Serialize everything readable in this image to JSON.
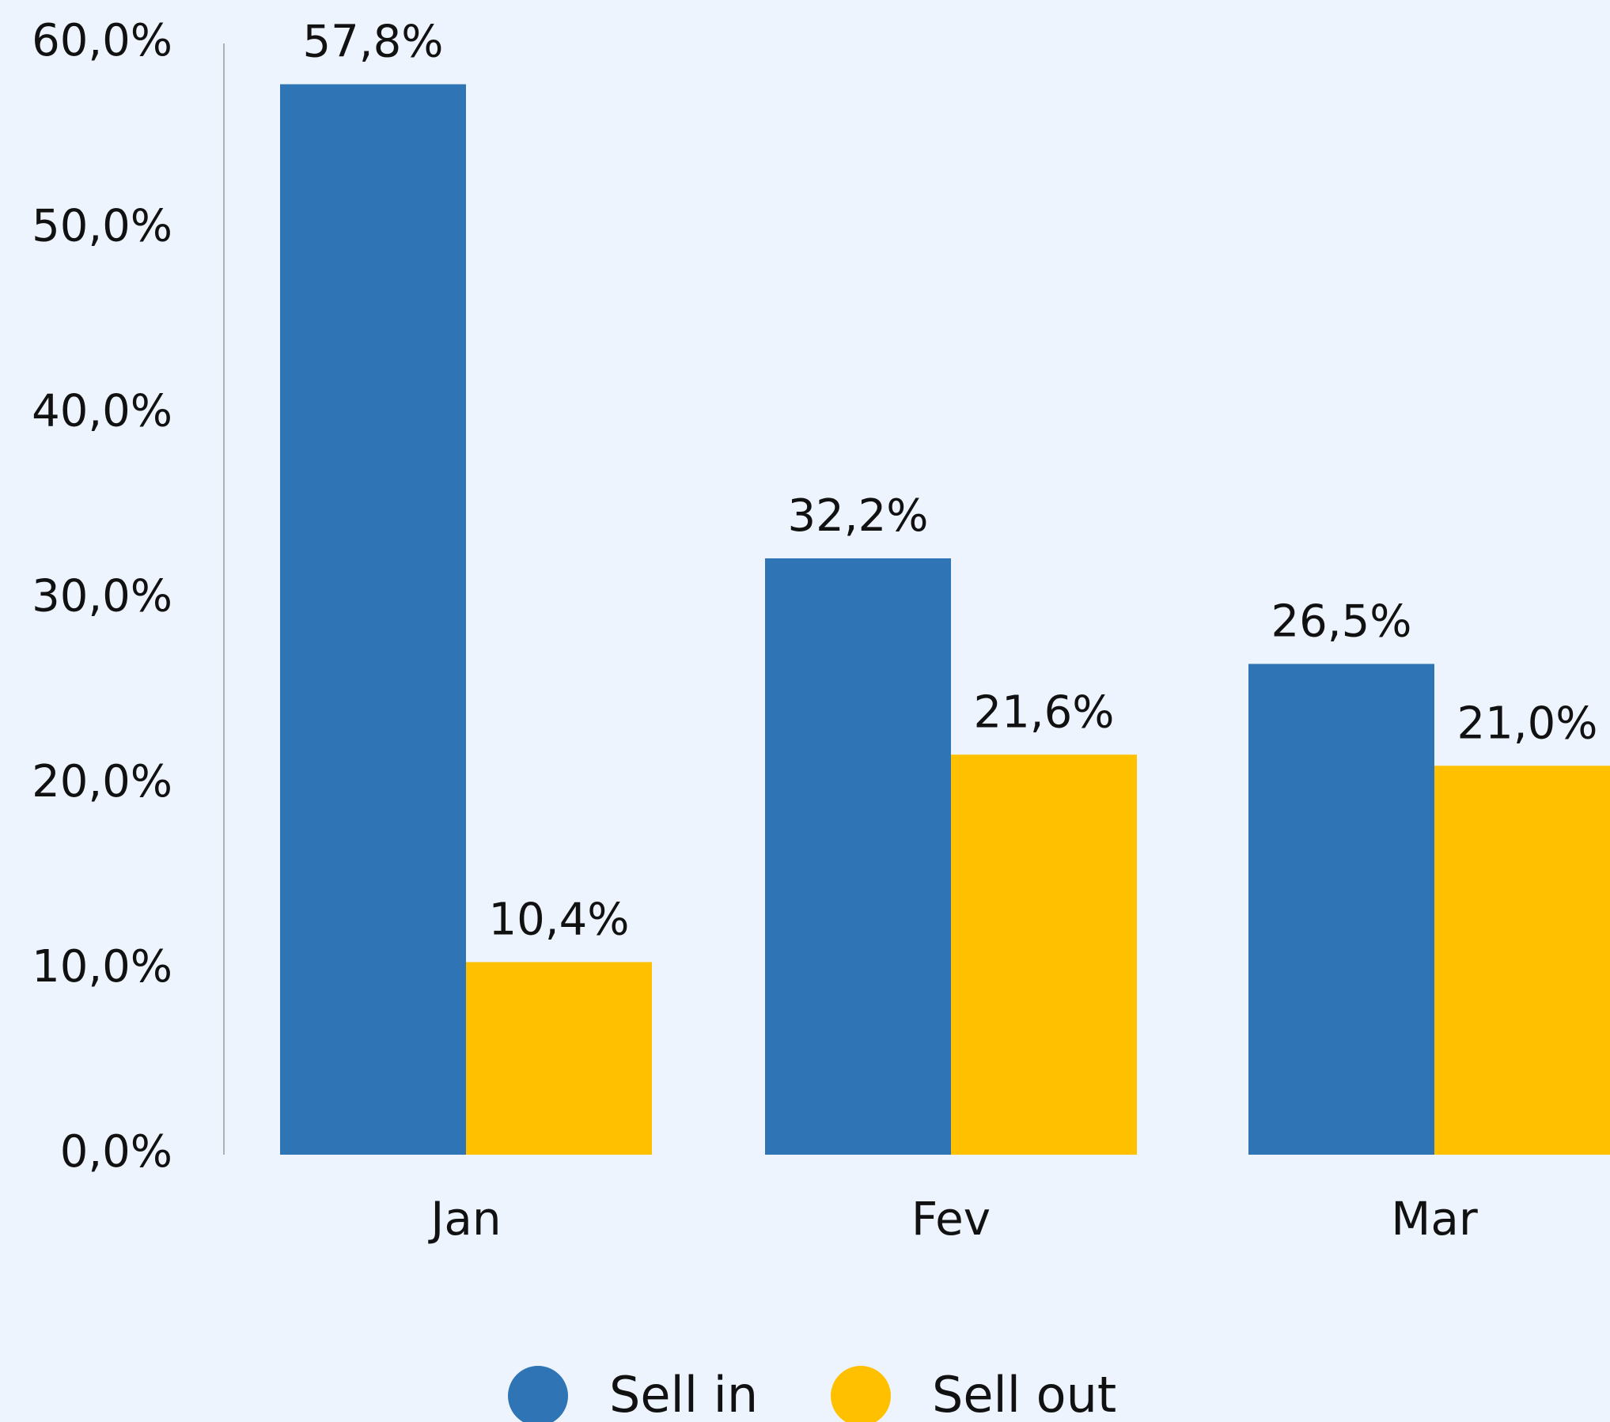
{
  "chart_data": {
    "type": "bar",
    "categories": [
      "Jan",
      "Fev",
      "Mar"
    ],
    "series": [
      {
        "name": "Sell in",
        "color": "#2f75b5",
        "values": [
          57.8,
          32.2,
          26.5
        ],
        "value_labels": [
          "57,8%",
          "32,2%",
          "26,5%"
        ]
      },
      {
        "name": "Sell out",
        "color": "#ffc000",
        "values": [
          10.4,
          21.6,
          21.0
        ],
        "value_labels": [
          "10,4%",
          "21,6%",
          "21,0%"
        ]
      }
    ],
    "ylim": [
      0,
      60
    ],
    "yticks": [
      {
        "value": 0,
        "label": "0,0%"
      },
      {
        "value": 10,
        "label": "10,0%"
      },
      {
        "value": 20,
        "label": "20,0%"
      },
      {
        "value": 30,
        "label": "30,0%"
      },
      {
        "value": 40,
        "label": "40,0%"
      },
      {
        "value": 50,
        "label": "50,0%"
      },
      {
        "value": 60,
        "label": "60,0%"
      }
    ],
    "grid": false,
    "legend": "bottom"
  }
}
